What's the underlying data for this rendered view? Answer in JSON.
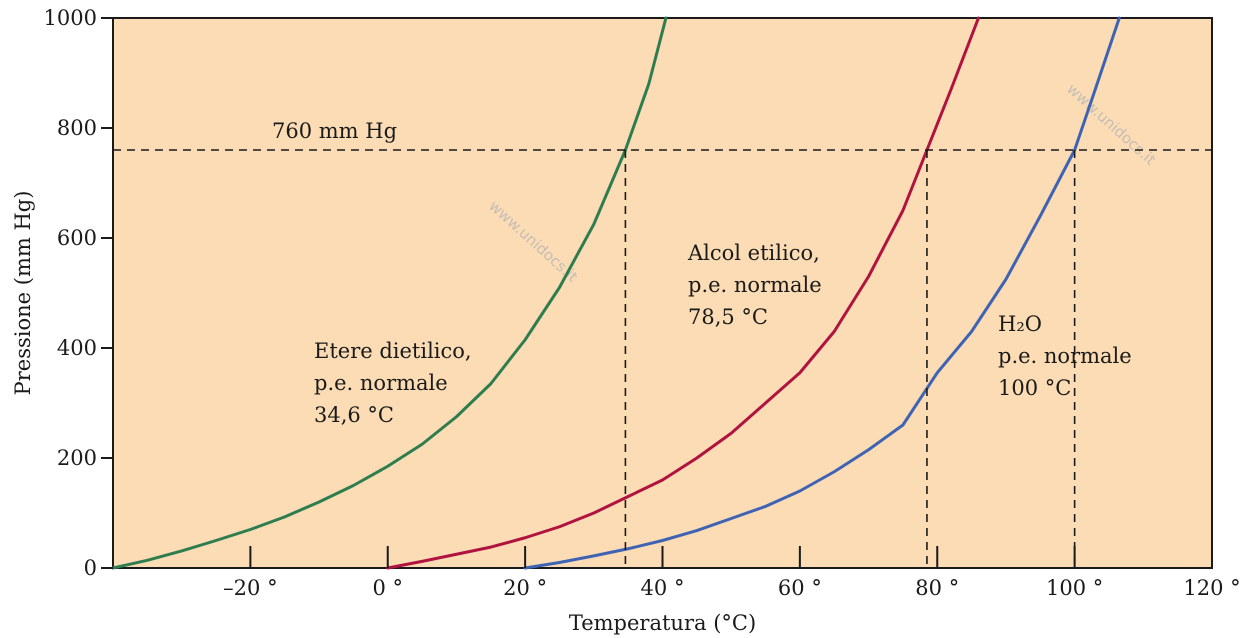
{
  "colors": {
    "plot_background": "#fbdcb4",
    "axis": "#1a1a1a",
    "ether": "#2e7d4f",
    "ethanol": "#b0133f",
    "water": "#3f63b4",
    "reference_line": "#1a1a1a"
  },
  "watermark": "www.unidocs.it",
  "chart_data": {
    "type": "line",
    "title": "",
    "xlabel": "Temperatura (°C)",
    "ylabel": "Pressione (mm Hg)",
    "xlim": [
      -40,
      120
    ],
    "ylim": [
      0,
      1000
    ],
    "x_ticks": [
      -20,
      0,
      20,
      40,
      60,
      80,
      100,
      120
    ],
    "x_tick_labels": [
      "–20 °",
      "0 °",
      "20 °",
      "40 °",
      "60 °",
      "80 °",
      "100 °",
      "120 °"
    ],
    "y_ticks": [
      0,
      200,
      400,
      600,
      800,
      1000
    ],
    "y_tick_labels": [
      "0",
      "200",
      "400",
      "600",
      "800",
      "1000"
    ],
    "grid": false,
    "reference_line": {
      "y": 760,
      "label": "760 mm Hg"
    },
    "series": [
      {
        "key": "ether",
        "label_lines": [
          "Etere dietilico,",
          "p.e. normale",
          "34,6 °C"
        ],
        "boiling_point": 34.6,
        "points": [
          [
            -40,
            0
          ],
          [
            -35,
            14
          ],
          [
            -30,
            31
          ],
          [
            -25,
            50
          ],
          [
            -20,
            70
          ],
          [
            -15,
            93
          ],
          [
            -10,
            120
          ],
          [
            -5,
            150
          ],
          [
            0,
            185
          ],
          [
            5,
            225
          ],
          [
            10,
            275
          ],
          [
            15,
            335
          ],
          [
            20,
            415
          ],
          [
            25,
            510
          ],
          [
            30,
            625
          ],
          [
            34.6,
            760
          ],
          [
            38,
            880
          ],
          [
            40.5,
            1000
          ]
        ]
      },
      {
        "key": "ethanol",
        "label_lines": [
          "Alcol etilico,",
          "p.e. normale",
          "78,5 °C"
        ],
        "boiling_point": 78.5,
        "points": [
          [
            0,
            0
          ],
          [
            5,
            12
          ],
          [
            10,
            25
          ],
          [
            15,
            38
          ],
          [
            20,
            55
          ],
          [
            25,
            75
          ],
          [
            30,
            100
          ],
          [
            35,
            130
          ],
          [
            40,
            160
          ],
          [
            45,
            200
          ],
          [
            50,
            245
          ],
          [
            55,
            300
          ],
          [
            60,
            355
          ],
          [
            65,
            430
          ],
          [
            70,
            530
          ],
          [
            75,
            650
          ],
          [
            78.5,
            760
          ],
          [
            82,
            870
          ],
          [
            86,
            1000
          ]
        ]
      },
      {
        "key": "water",
        "label_lines": [
          "H₂O",
          "p.e. normale",
          "100 °C"
        ],
        "boiling_point": 100,
        "points": [
          [
            20,
            0
          ],
          [
            25,
            10
          ],
          [
            30,
            22
          ],
          [
            35,
            35
          ],
          [
            40,
            50
          ],
          [
            45,
            68
          ],
          [
            50,
            90
          ],
          [
            55,
            112
          ],
          [
            60,
            140
          ],
          [
            65,
            175
          ],
          [
            70,
            215
          ],
          [
            75,
            260
          ],
          [
            80,
            355
          ],
          [
            85,
            430
          ],
          [
            90,
            525
          ],
          [
            95,
            640
          ],
          [
            100,
            760
          ],
          [
            103,
            870
          ],
          [
            106.5,
            1000
          ]
        ]
      }
    ]
  }
}
